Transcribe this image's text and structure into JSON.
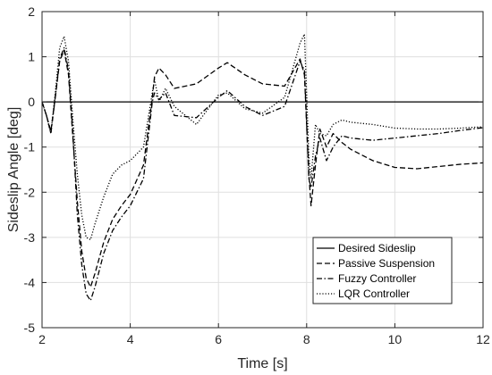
{
  "chart_data": {
    "type": "line",
    "xlabel": "Time [s]",
    "ylabel": "Sideslip Angle [deg]",
    "xlim": [
      2,
      12
    ],
    "ylim": [
      -5,
      2
    ],
    "xticks": [
      2,
      4,
      6,
      8,
      10,
      12
    ],
    "yticks": [
      -5,
      -4,
      -3,
      -2,
      -1,
      0,
      1,
      2
    ],
    "grid": true,
    "legend_position": "bottom-right",
    "series": [
      {
        "name": "Desired Sideslip",
        "style": "solid",
        "x": [
          2,
          12
        ],
        "y": [
          0,
          0
        ]
      },
      {
        "name": "Passive Suspension",
        "style": "dashed",
        "x": [
          2.0,
          2.1,
          2.2,
          2.3,
          2.4,
          2.5,
          2.6,
          2.7,
          2.8,
          2.9,
          3.0,
          3.1,
          3.2,
          3.4,
          3.6,
          3.8,
          4.0,
          4.3,
          4.5,
          4.55,
          4.65,
          4.8,
          5.0,
          5.5,
          6.0,
          6.2,
          6.6,
          7.0,
          7.5,
          7.85,
          7.95,
          8.05,
          8.1,
          8.2,
          8.3,
          8.45,
          8.6,
          8.8,
          9.0,
          9.5,
          10.0,
          10.5,
          11.0,
          11.5,
          12.0
        ],
        "y": [
          0.0,
          -0.3,
          -0.65,
          0.1,
          0.9,
          1.15,
          0.6,
          -0.8,
          -2.2,
          -3.3,
          -3.9,
          -4.1,
          -3.8,
          -3.1,
          -2.6,
          -2.3,
          -2.05,
          -1.4,
          0.1,
          0.55,
          0.75,
          0.6,
          0.3,
          0.4,
          0.75,
          0.87,
          0.6,
          0.4,
          0.35,
          0.95,
          0.6,
          -1.6,
          -2.3,
          -1.4,
          -0.6,
          -1.0,
          -0.7,
          -0.9,
          -1.05,
          -1.3,
          -1.45,
          -1.48,
          -1.43,
          -1.38,
          -1.35
        ]
      },
      {
        "name": "Fuzzy Controller",
        "style": "dashdot",
        "x": [
          2.0,
          2.1,
          2.2,
          2.3,
          2.4,
          2.5,
          2.6,
          2.7,
          2.8,
          2.9,
          3.0,
          3.1,
          3.2,
          3.4,
          3.6,
          3.8,
          4.0,
          4.3,
          4.5,
          4.55,
          4.65,
          4.8,
          5.0,
          5.5,
          6.0,
          6.2,
          6.6,
          7.0,
          7.5,
          7.85,
          7.95,
          8.05,
          8.1,
          8.2,
          8.3,
          8.45,
          8.6,
          8.8,
          9.0,
          9.5,
          10.0,
          10.5,
          11.0,
          11.5,
          12.0
        ],
        "y": [
          0.0,
          -0.3,
          -0.7,
          0.1,
          0.95,
          1.2,
          0.7,
          -0.7,
          -2.5,
          -3.6,
          -4.25,
          -4.4,
          -4.1,
          -3.35,
          -2.85,
          -2.55,
          -2.3,
          -1.7,
          0.0,
          0.2,
          0.05,
          0.2,
          -0.3,
          -0.35,
          0.1,
          0.25,
          -0.1,
          -0.3,
          -0.1,
          0.9,
          0.7,
          -1.7,
          -1.9,
          -1.2,
          -0.8,
          -1.3,
          -1.0,
          -0.75,
          -0.8,
          -0.85,
          -0.8,
          -0.75,
          -0.7,
          -0.63,
          -0.57
        ]
      },
      {
        "name": "LQR Controller",
        "style": "dotted",
        "x": [
          2.0,
          2.1,
          2.2,
          2.3,
          2.4,
          2.5,
          2.6,
          2.7,
          2.8,
          2.9,
          3.0,
          3.1,
          3.2,
          3.4,
          3.6,
          3.8,
          4.0,
          4.3,
          4.5,
          4.55,
          4.65,
          4.8,
          5.0,
          5.5,
          6.0,
          6.2,
          6.6,
          7.0,
          7.5,
          7.85,
          7.95,
          8.05,
          8.1,
          8.2,
          8.3,
          8.45,
          8.6,
          8.8,
          9.0,
          9.5,
          10.0,
          10.5,
          11.0,
          11.5,
          12.0
        ],
        "y": [
          0.0,
          -0.3,
          -0.7,
          0.2,
          1.2,
          1.45,
          0.9,
          -0.4,
          -1.6,
          -2.5,
          -3.0,
          -3.05,
          -2.7,
          -2.1,
          -1.6,
          -1.4,
          -1.3,
          -1.0,
          0.2,
          0.5,
          0.0,
          0.3,
          -0.1,
          -0.5,
          0.15,
          0.2,
          -0.15,
          -0.25,
          0.1,
          1.3,
          1.5,
          -1.2,
          -1.7,
          -0.5,
          -0.7,
          -0.75,
          -0.5,
          -0.4,
          -0.45,
          -0.5,
          -0.58,
          -0.6,
          -0.6,
          -0.58,
          -0.55
        ]
      }
    ]
  }
}
